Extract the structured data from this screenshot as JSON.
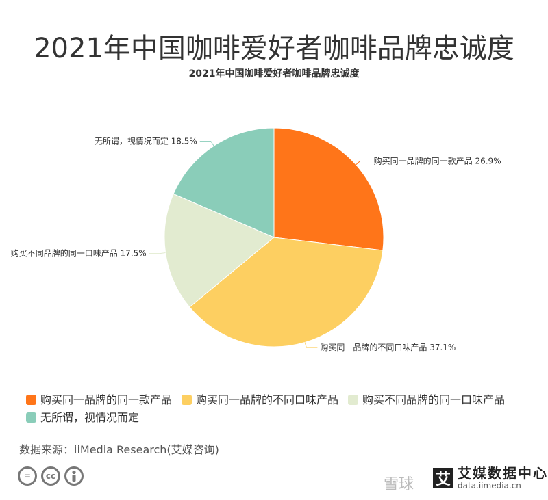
{
  "header": {
    "title": "2021年中国咖啡爱好者咖啡品牌忠诚度"
  },
  "chart_data": {
    "type": "pie",
    "title": "2021年中国咖啡爱好者咖啡品牌忠诚度",
    "unit": "%",
    "slices": [
      {
        "name": "购买同一品牌的同一款产品",
        "value": 26.9,
        "label": "购买同一品牌的同一款产品 26.9%",
        "color": "#FF7519"
      },
      {
        "name": "购买同一品牌的不同口味产品",
        "value": 37.1,
        "label": "购买同一品牌的不同口味产品 37.1%",
        "color": "#FDCF61"
      },
      {
        "name": "购买不同品牌的同一口味产品",
        "value": 17.5,
        "label": "购买不同品牌的同一口味产品 17.5%",
        "color": "#E2EBD0"
      },
      {
        "name": "无所谓，视情况而定",
        "value": 18.5,
        "label": "无所谓，视情况而定 18.5%",
        "color": "#8ACDB9"
      }
    ],
    "legend_placement": "bottom-left"
  },
  "footer": {
    "source": "数据来源：iiMedia Research(艾媒咨询)",
    "cc_icons": [
      "equals-icon",
      "cc-icon",
      "person-icon"
    ],
    "cc_text": [
      "=",
      "cc"
    ],
    "watermark": "雪球",
    "brand_cn": "艾媒数据中心",
    "brand_en": "data.iimedia.cn",
    "brand_mark": "艾"
  }
}
